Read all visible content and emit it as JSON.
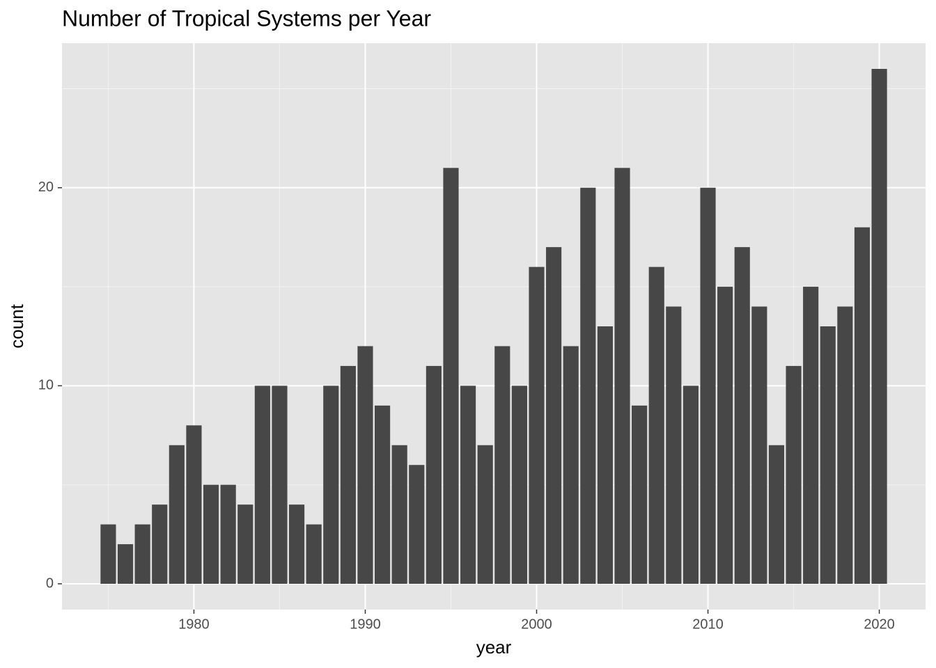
{
  "chart_data": {
    "type": "bar",
    "title": "Number of Tropical Systems per Year",
    "x_label": "year",
    "y_label": "count",
    "x": [
      1975,
      1976,
      1977,
      1978,
      1979,
      1980,
      1981,
      1982,
      1983,
      1984,
      1985,
      1986,
      1987,
      1988,
      1989,
      1990,
      1991,
      1992,
      1993,
      1994,
      1995,
      1996,
      1997,
      1998,
      1999,
      2000,
      2001,
      2002,
      2003,
      2004,
      2005,
      2006,
      2007,
      2008,
      2009,
      2010,
      2011,
      2012,
      2013,
      2014,
      2015,
      2016,
      2017,
      2018,
      2019,
      2020
    ],
    "values": [
      3,
      2,
      3,
      4,
      7,
      8,
      5,
      5,
      4,
      10,
      10,
      4,
      3,
      10,
      11,
      12,
      9,
      7,
      6,
      11,
      21,
      10,
      7,
      12,
      10,
      16,
      17,
      12,
      20,
      13,
      21,
      9,
      16,
      14,
      10,
      20,
      15,
      17,
      14,
      7,
      11,
      15,
      13,
      14,
      18,
      26
    ],
    "color": "#474747",
    "xlim": [
      1972.3,
      2022.7
    ],
    "xticks": [
      1980,
      1990,
      2000,
      2010,
      2020
    ],
    "ylim": [
      -1.3,
      27.3
    ],
    "yticks": [
      0,
      10,
      20
    ],
    "grid": true
  }
}
